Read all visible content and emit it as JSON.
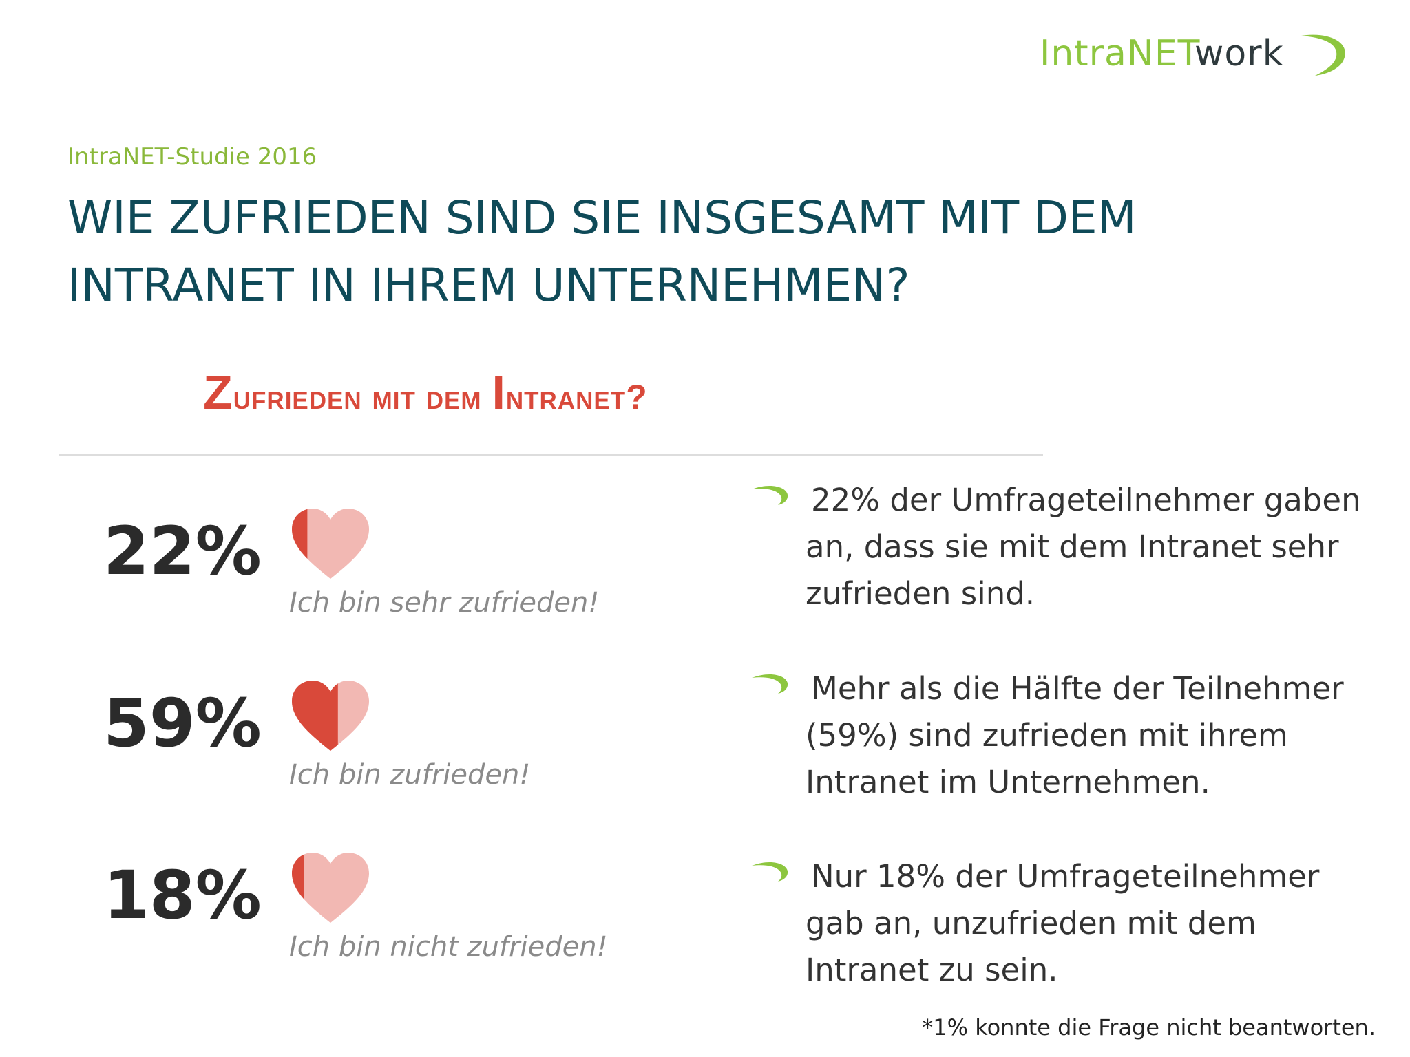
{
  "logo": {
    "part1": "IntraNET",
    "part2": "work"
  },
  "header": {
    "subtitle": "IntraNET-Studie 2016",
    "headline": "WIE ZUFRIEDEN SIND SIE INSGESAMT MIT DEM INTRANET IN IHREM UNTERNEHMEN?"
  },
  "colors": {
    "heart_dark": "#d9493a",
    "heart_light": "#f2b8b3",
    "accent_green": "#8dc63f",
    "headline": "#0f4a58",
    "chart_title": "#d9493a"
  },
  "chart_data": {
    "type": "pictograph",
    "title": "Zufrieden mit dem Intranet?",
    "categories": [
      "Ich bin sehr zufrieden!",
      "Ich bin zufrieden!",
      "Ich bin nicht zufrieden!"
    ],
    "values": [
      22,
      59,
      18
    ],
    "value_labels": [
      "22%",
      "59%",
      "18%"
    ],
    "unit": "%"
  },
  "bullets": [
    "22% der Umfrageteilnehmer gaben an, dass sie mit dem Intranet sehr zufrieden sind.",
    "Mehr als die Hälfte der Teilnehmer (59%) sind zufrieden mit ihrem Intranet im Unternehmen.",
    "Nur 18% der Umfrageteilnehmer gab an, unzufrieden mit dem Intranet zu sein."
  ],
  "footnote": "*1% konnte die Frage nicht beantworten."
}
